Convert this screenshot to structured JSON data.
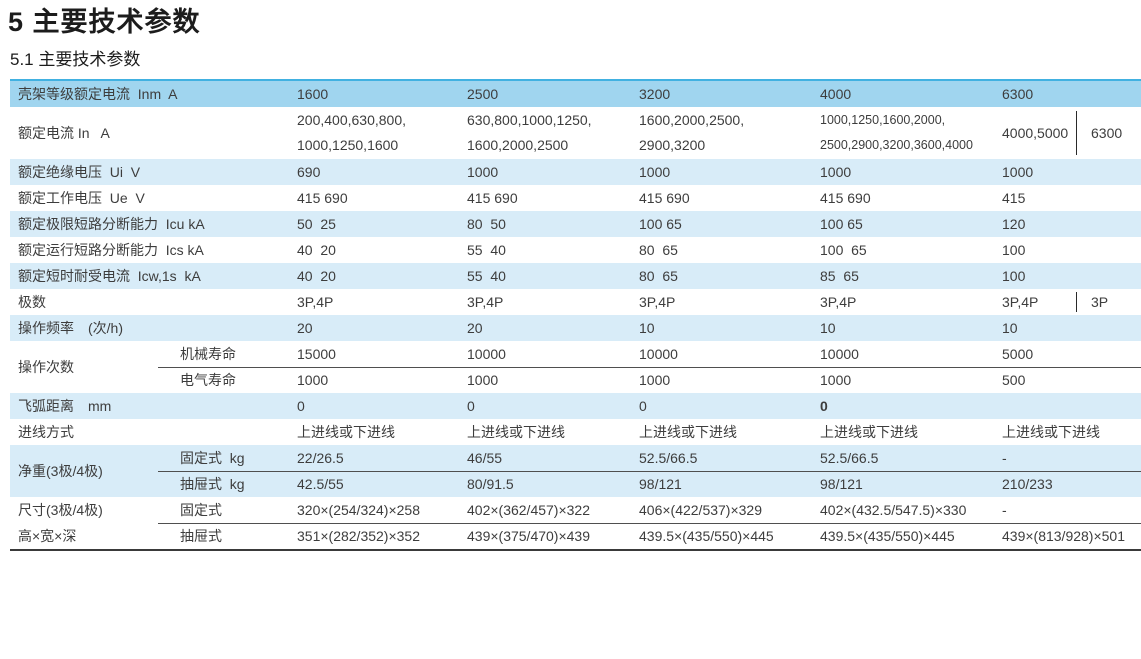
{
  "page": {
    "title": "5 主要技术参数",
    "subtitle": "5.1 主要技术参数"
  },
  "colors": {
    "header_row_bg": "#a0d5ef",
    "alt_row_bg": "#d8ecf8",
    "table_top_border": "#41b1e1",
    "text": "#3d3d3d"
  },
  "table": {
    "inm": {
      "label": "壳架等级额定电流  Inm  A",
      "values": [
        "1600",
        "2500",
        "3200",
        "4000",
        "6300"
      ]
    },
    "in": {
      "label": "额定电流 In   A",
      "values": [
        [
          "200,400,630,800,",
          "1000,1250,1600"
        ],
        [
          "630,800,1000,1250,",
          "1600,2000,2500"
        ],
        [
          "1600,2000,2500,",
          "2900,3200"
        ],
        [
          "1000,1250,1600,2000,",
          "2500,2900,3200,3600,4000"
        ]
      ],
      "split_left": "4000,5000",
      "split_right": "6300"
    },
    "ui": {
      "label": "额定绝缘电压  Ui  V",
      "values": [
        "690",
        "1000",
        "1000",
        "1000",
        "1000"
      ]
    },
    "ue": {
      "label": "额定工作电压  Ue  V",
      "values": [
        "415 690",
        "415 690",
        "415 690",
        "415 690",
        "415"
      ]
    },
    "icu": {
      "label": "额定极限短路分断能力  Icu kA",
      "values": [
        "50  25",
        "80  50",
        "100 65",
        "100 65",
        "120"
      ]
    },
    "ics": {
      "label": "额定运行短路分断能力  Ics kA",
      "values": [
        "40  20",
        "55  40",
        "80  65",
        "100  65",
        "100"
      ]
    },
    "icw": {
      "label": "额定短时耐受电流  Icw,1s  kA",
      "values": [
        "40  20",
        "55  40",
        "80  65",
        "85  65",
        "100"
      ]
    },
    "poles": {
      "label": "极数",
      "values": [
        "3P,4P",
        "3P,4P",
        "3P,4P",
        "3P,4P"
      ],
      "split_left": "3P,4P",
      "split_right": "3P"
    },
    "freq": {
      "label": "操作频率　(次/h)",
      "values": [
        "20",
        "20",
        "10",
        "10",
        "10"
      ]
    },
    "cycles": {
      "label": "操作次数",
      "sub": [
        {
          "name": "机械寿命",
          "values": [
            "15000",
            "10000",
            "10000",
            "10000",
            "5000"
          ]
        },
        {
          "name": "电气寿命",
          "values": [
            "1000",
            "1000",
            "1000",
            "1000",
            "500"
          ]
        }
      ]
    },
    "arc": {
      "label": "飞弧距离　mm",
      "values": [
        "0",
        "0",
        "0",
        "0",
        ""
      ]
    },
    "wiring": {
      "label": "进线方式",
      "values": [
        "上进线或下进线",
        "上进线或下进线",
        "上进线或下进线",
        "上进线或下进线",
        "上进线或下进线"
      ]
    },
    "weight": {
      "label": "净重(3极/4极)",
      "sub": [
        {
          "name": "固定式  kg",
          "values": [
            "22/26.5",
            "46/55",
            "52.5/66.5",
            "52.5/66.5",
            "-"
          ]
        },
        {
          "name": "抽屉式  kg",
          "values": [
            "42.5/55",
            "80/91.5",
            "98/121",
            "98/121",
            "210/233"
          ]
        }
      ]
    },
    "dims": {
      "label_line1": "尺寸(3极/4极)",
      "label_line2": "高×宽×深",
      "sub": [
        {
          "name": "固定式",
          "values": [
            "320×(254/324)×258",
            "402×(362/457)×322",
            "406×(422/537)×329",
            "402×(432.5/547.5)×330",
            "-"
          ]
        },
        {
          "name": "抽屉式",
          "values": [
            "351×(282/352)×352",
            "439×(375/470)×439",
            "439.5×(435/550)×445",
            "439.5×(435/550)×445",
            "439×(813/928)×501"
          ]
        }
      ]
    }
  }
}
